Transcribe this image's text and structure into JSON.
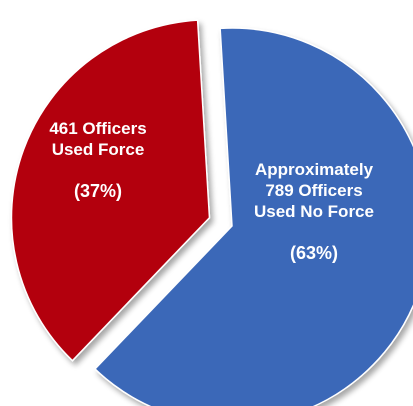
{
  "chart_data": {
    "type": "pie",
    "slices": [
      {
        "label_lines": [
          "461 Officers",
          "Used Force"
        ],
        "percent_label": "(37%)",
        "value": 461,
        "percent": 37,
        "color": "#b3000f",
        "exploded": true
      },
      {
        "label_lines": [
          "Approximately",
          "789 Officers",
          "Used No Force"
        ],
        "percent_label": "(63%)",
        "value": 789,
        "percent": 63,
        "color": "#3a67b8",
        "exploded": false
      }
    ],
    "title": "",
    "legend": "none"
  }
}
